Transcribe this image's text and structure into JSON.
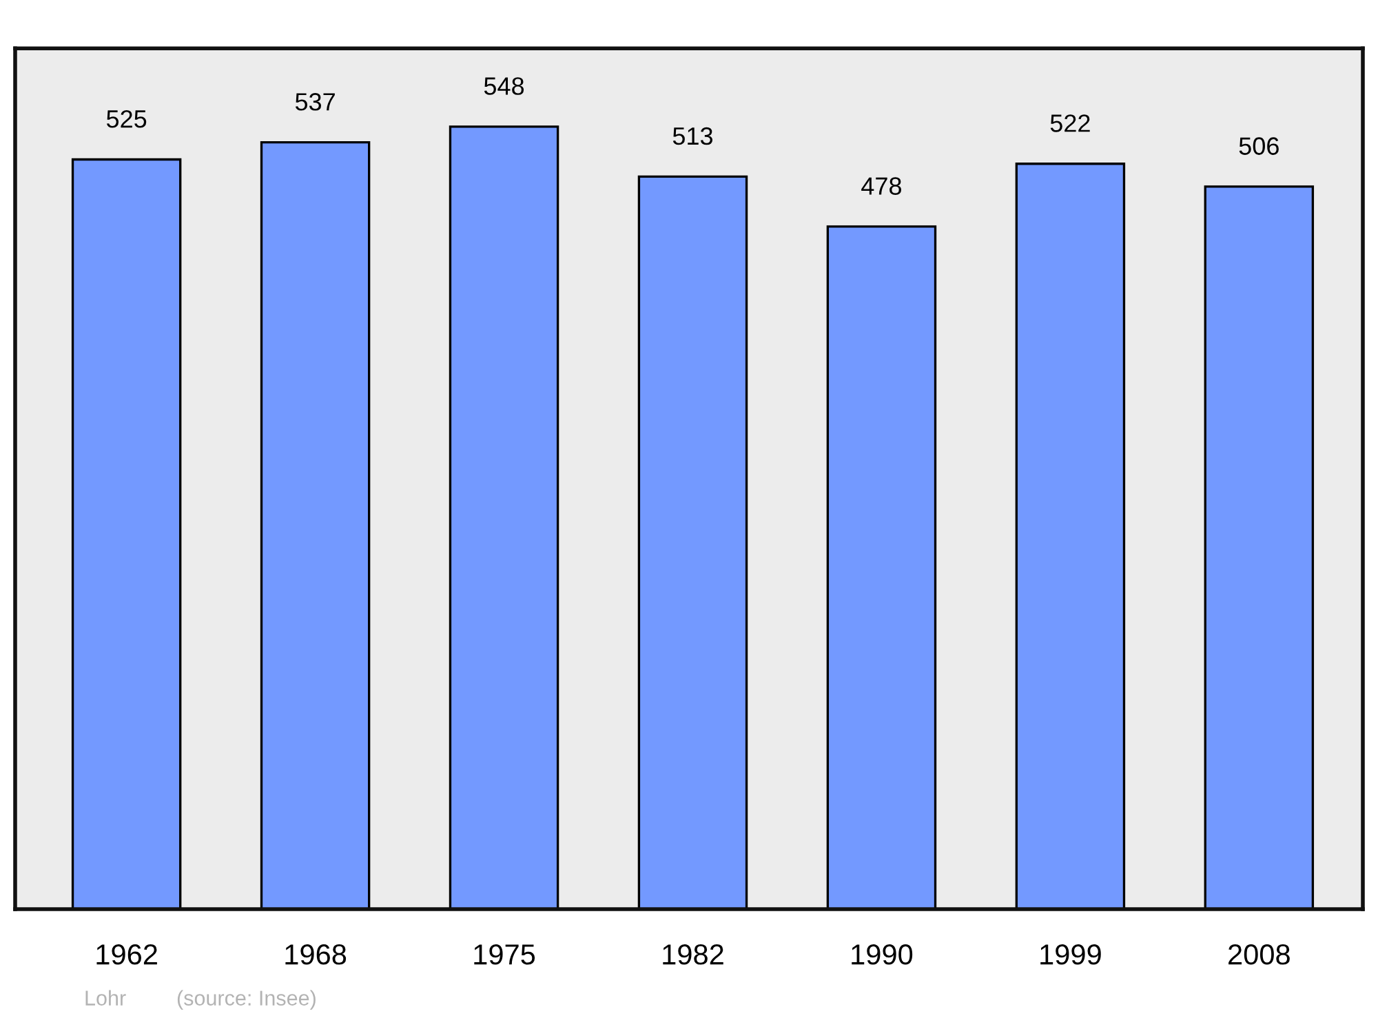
{
  "chart_data": {
    "type": "bar",
    "categories": [
      "1962",
      "1968",
      "1975",
      "1982",
      "1990",
      "1999",
      "2008"
    ],
    "values": [
      525,
      537,
      548,
      513,
      478,
      522,
      506
    ],
    "color": "#7399ff",
    "data_labels": true,
    "grid": false,
    "legend": false,
    "tick_labels": "x",
    "annotations": [
      "Lohr",
      "(source: Insee)"
    ]
  }
}
